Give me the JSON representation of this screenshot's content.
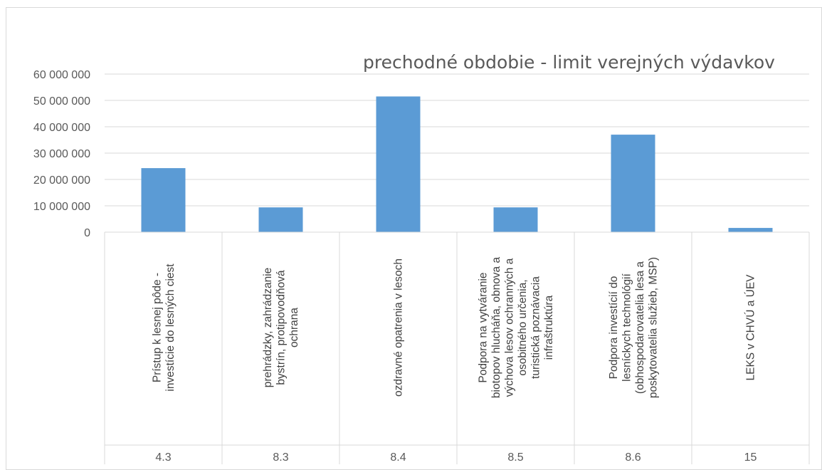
{
  "chart_data": {
    "type": "bar",
    "title": "prechodné obdobie - limit verejných výdavkov",
    "xlabel": "",
    "ylabel": "",
    "ylim": [
      0,
      60000000
    ],
    "yticks": [
      "0",
      "10 000 000",
      "20 000 000",
      "30 000 000",
      "40 000 000",
      "50 000 000",
      "60 000 000"
    ],
    "grid": true,
    "legend": "none",
    "colors": {
      "bar": "#5b9bd5",
      "grid": "#d9d9d9",
      "text": "#595959"
    },
    "categories": [
      {
        "code": "4.3",
        "lines": [
          "Prístup k lesnej pôde -",
          "investície do lesných ciest"
        ]
      },
      {
        "code": "8.3",
        "lines": [
          "prehrádzky, zahrádzanie",
          "bystrín, protipovodňová",
          "ochrana"
        ]
      },
      {
        "code": "8.4",
        "lines": [
          "ozdravné opatrenia v lesoch"
        ]
      },
      {
        "code": "8.5",
        "lines": [
          "Podpora na vytváranie",
          "biotopov hlucháňa, obnova a",
          "výchova lesov ochranných a",
          "osobitného určenia,",
          "turistická poznávacia",
          "infraštruktúra"
        ]
      },
      {
        "code": "8.6",
        "lines": [
          "Podpora investícií do",
          "lesníckych technológií",
          "(obhospodarovatelia lesa a",
          "poskytovatelia služieb, MSP)"
        ]
      },
      {
        "code": "15",
        "lines": [
          "LEKS v CHVÚ a ÚEV"
        ]
      }
    ],
    "values": [
      24300000,
      9400000,
      51500000,
      9400000,
      37000000,
      1600000
    ]
  }
}
